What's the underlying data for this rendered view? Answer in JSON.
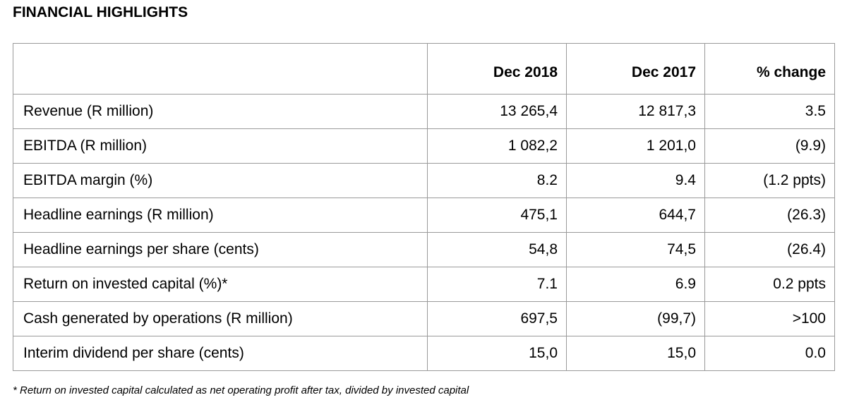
{
  "title": "FINANCIAL HIGHLIGHTS",
  "headers": [
    "",
    "Dec 2018",
    "Dec 2017",
    "% change"
  ],
  "rows": [
    {
      "label": "Revenue (R million)",
      "dec2018": "13 265,4",
      "dec2017": "12 817,3",
      "change": "3.5"
    },
    {
      "label": "EBITDA (R million)",
      "dec2018": "1 082,2",
      "dec2017": "1 201,0",
      "change": "(9.9)"
    },
    {
      "label": "EBITDA margin (%)",
      "dec2018": "8.2",
      "dec2017": "9.4",
      "change": "(1.2 ppts)"
    },
    {
      "label": "Headline earnings (R million)",
      "dec2018": "475,1",
      "dec2017": "644,7",
      "change": "(26.3)"
    },
    {
      "label": "Headline earnings per share (cents)",
      "dec2018": "54,8",
      "dec2017": "74,5",
      "change": "(26.4)"
    },
    {
      "label": "Return on invested capital (%)*",
      "dec2018": "7.1",
      "dec2017": "6.9",
      "change": "0.2 ppts"
    },
    {
      "label": "Cash generated by operations (R million)",
      "dec2018": "697,5",
      "dec2017": "(99,7)",
      "change": ">100"
    },
    {
      "label": "Interim dividend per share (cents)",
      "dec2018": "15,0",
      "dec2017": "15,0",
      "change": "0.0"
    }
  ],
  "footnote": "* Return on invested capital calculated as net operating profit after tax, divided by invested capital"
}
